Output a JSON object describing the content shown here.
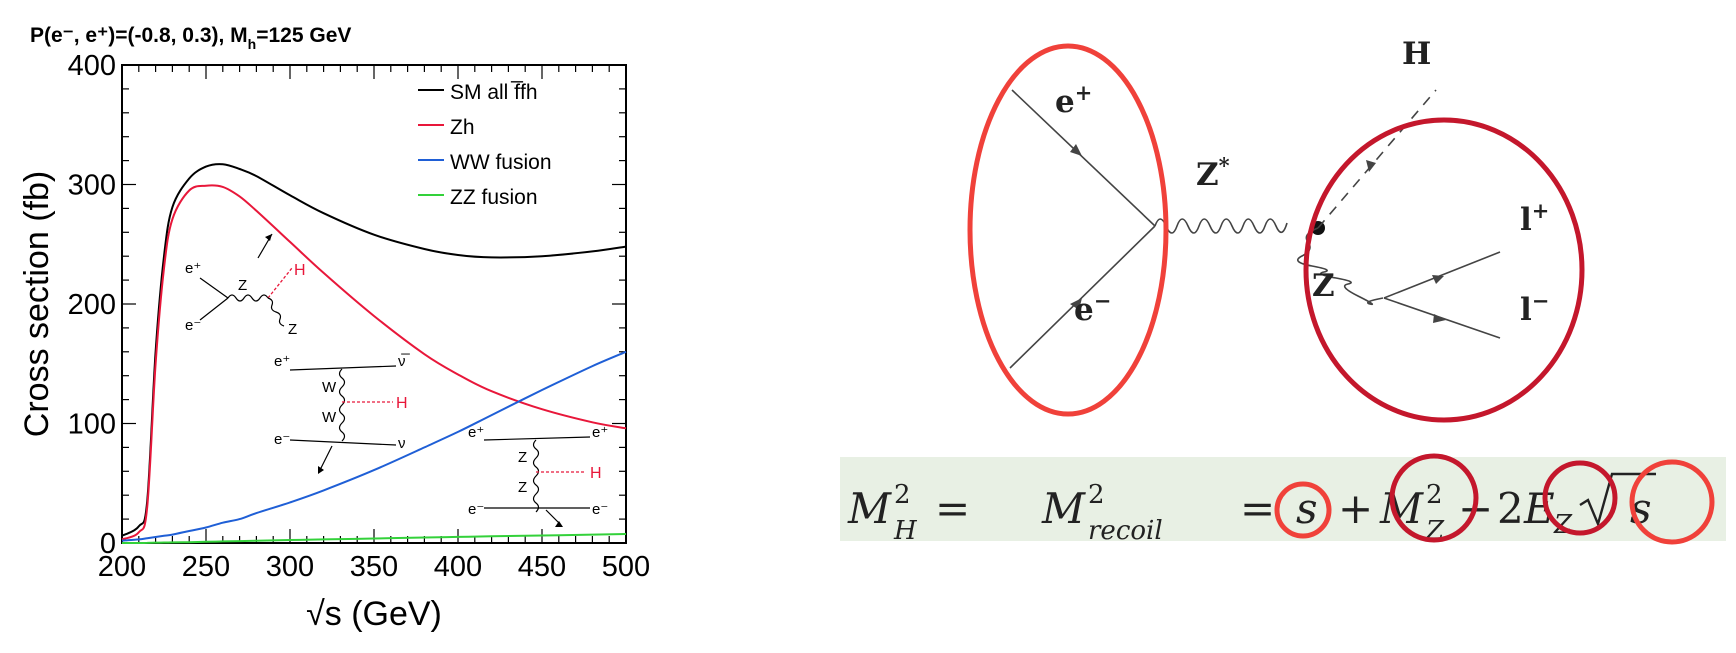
{
  "chart_data": {
    "type": "line",
    "title": "P(e⁻, e⁺)=(-0.8, 0.3), M",
    "title_sub": "h",
    "title_tail": "=125 GeV",
    "xlabel": "√s (GeV)",
    "ylabel": "Cross section (fb)",
    "xlim": [
      200,
      500
    ],
    "ylim": [
      0,
      400
    ],
    "x_ticks": [
      "200",
      "250",
      "300",
      "350",
      "400",
      "450",
      "500"
    ],
    "y_ticks": [
      "0",
      "100",
      "200",
      "300",
      "400"
    ],
    "x_tick_values": [
      200,
      250,
      300,
      350,
      400,
      450,
      500
    ],
    "y_tick_values": [
      0,
      100,
      200,
      300,
      400
    ],
    "grid": false,
    "legend_position": "top-right",
    "x": [
      200,
      210,
      215,
      220,
      225,
      230,
      240,
      250,
      260,
      270,
      280,
      300,
      320,
      350,
      380,
      400,
      420,
      450,
      480,
      500
    ],
    "series": [
      {
        "name": "SM all f̅fh",
        "color": "#000000",
        "values": [
          6,
          14,
          35,
          160,
          240,
          281,
          305,
          315,
          317,
          313,
          307,
          291,
          276,
          258,
          246,
          241,
          239,
          240,
          244,
          248
        ]
      },
      {
        "name": "Zh",
        "color": "#e8173a",
        "values": [
          3,
          9,
          30,
          150,
          230,
          271,
          295,
          299,
          298,
          290,
          278,
          252,
          226,
          190,
          158,
          141,
          127,
          112,
          101,
          96
        ]
      },
      {
        "name": "WW fusion",
        "color": "#1f5fd6",
        "values": [
          2,
          3,
          4,
          5,
          6,
          7,
          10,
          13,
          17,
          20,
          25,
          34,
          44,
          61,
          80,
          93,
          107,
          128,
          148,
          160
        ]
      },
      {
        "name": "ZZ fusion",
        "color": "#33d13a",
        "values": [
          0,
          0,
          0.1,
          0.3,
          0.4,
          0.5,
          0.7,
          1,
          1.3,
          1.6,
          1.9,
          2.5,
          3,
          3.8,
          4.6,
          5.1,
          5.6,
          6.3,
          7,
          7.5
        ]
      }
    ]
  },
  "inset_diagrams": {
    "zh": {
      "e_plus": "e⁺",
      "e_minus": "e⁻",
      "z_prop": "Z",
      "higgs": "H",
      "z_out": "Z"
    },
    "ww": {
      "e_plus": "e⁺",
      "nubar": "ν̅",
      "w_top": "W",
      "w_bot": "W",
      "higgs": "H",
      "e_minus": "e⁻",
      "nu": "ν"
    },
    "zz": {
      "e_plus_l": "e⁺",
      "e_plus_r": "e⁺",
      "z_top": "Z",
      "z_bot": "Z",
      "higgs": "H",
      "e_minus_l": "e⁻",
      "e_minus_r": "e⁻"
    }
  },
  "feynman_diagram": {
    "e_plus": "e",
    "e_plus_sup": "+",
    "e_minus": "e",
    "e_minus_sup": "−",
    "z_star": "Z",
    "z_star_sup": "*",
    "higgs": "H",
    "z": "Z",
    "l_plus": "l",
    "l_plus_sup": "+",
    "l_minus": "l",
    "l_minus_sup": "−",
    "highlight_color_light": "#f0413a",
    "highlight_color_dark": "#c4172c"
  },
  "formula": {
    "mh": "M",
    "mh_sup": "2",
    "mh_sub": "H",
    "eq1": "=",
    "mrec": "M",
    "mrec_sup": "2",
    "mrec_sub": "recoil",
    "eq2": "=",
    "s": "s",
    "plus": "+",
    "mz": "M",
    "mz_sup": "2",
    "mz_sub": "Z",
    "minus": "−",
    "two": "2",
    "ez": "E",
    "ez_sub": "Z",
    "sqrt_s": "s",
    "band_color": "#e8f0e4"
  }
}
